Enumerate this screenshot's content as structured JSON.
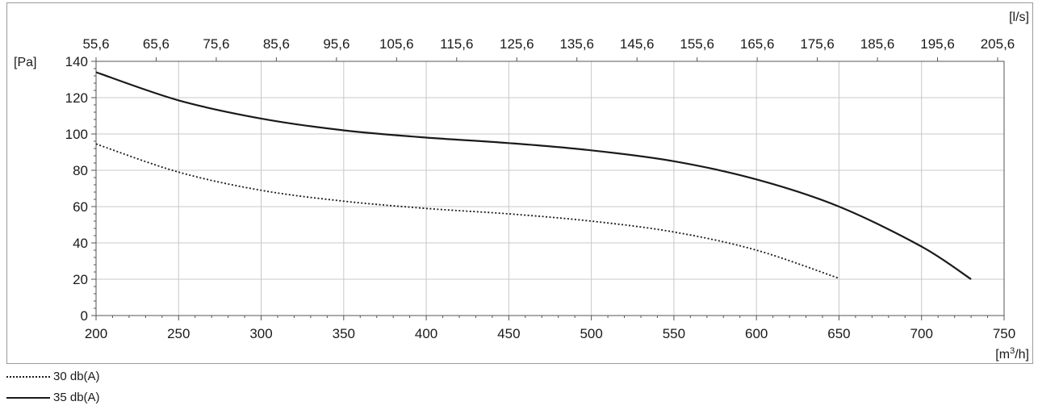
{
  "chart_data": {
    "type": "line",
    "x_unit": "[m³/h]",
    "x_unit_base": "[m",
    "x_unit_sup": "3",
    "x_unit_tail": "/h]",
    "x_top_unit": "[l/s]",
    "y_unit": "[Pa]",
    "xlim": [
      200,
      750
    ],
    "ylim": [
      0,
      140
    ],
    "x_ticks": [
      200,
      250,
      300,
      350,
      400,
      450,
      500,
      550,
      600,
      650,
      700,
      750
    ],
    "x_tick_labels": [
      "200",
      "250",
      "300",
      "350",
      "400",
      "450",
      "500",
      "550",
      "600",
      "650",
      "700",
      "750"
    ],
    "y_ticks": [
      0,
      20,
      40,
      60,
      80,
      100,
      120,
      140
    ],
    "y_tick_labels": [
      "0",
      "20",
      "40",
      "60",
      "80",
      "100",
      "120",
      "140"
    ],
    "x_top_ticks": [
      "55,6",
      "65,6",
      "75,6",
      "85,6",
      "95,6",
      "105,6",
      "115,6",
      "125,6",
      "135,6",
      "145,6",
      "155,6",
      "165,6",
      "175,6",
      "185,6",
      "195,6",
      "205,6"
    ],
    "grid": true,
    "legend_position": "bottom-left",
    "series": [
      {
        "name": "30 db(A)",
        "style": "dotted",
        "color": "#1a1a1a",
        "points": [
          [
            200,
            94.5
          ],
          [
            250,
            79
          ],
          [
            300,
            69
          ],
          [
            350,
            63
          ],
          [
            400,
            59
          ],
          [
            450,
            56
          ],
          [
            500,
            52
          ],
          [
            550,
            46
          ],
          [
            600,
            36
          ],
          [
            650,
            20.5
          ]
        ]
      },
      {
        "name": "35 db(A)",
        "style": "solid",
        "color": "#1a1a1a",
        "points": [
          [
            200,
            134
          ],
          [
            250,
            118.5
          ],
          [
            300,
            108.5
          ],
          [
            350,
            102
          ],
          [
            400,
            98
          ],
          [
            450,
            95
          ],
          [
            500,
            91
          ],
          [
            550,
            85
          ],
          [
            600,
            75
          ],
          [
            650,
            60
          ],
          [
            700,
            38
          ],
          [
            730,
            20
          ]
        ]
      }
    ]
  }
}
